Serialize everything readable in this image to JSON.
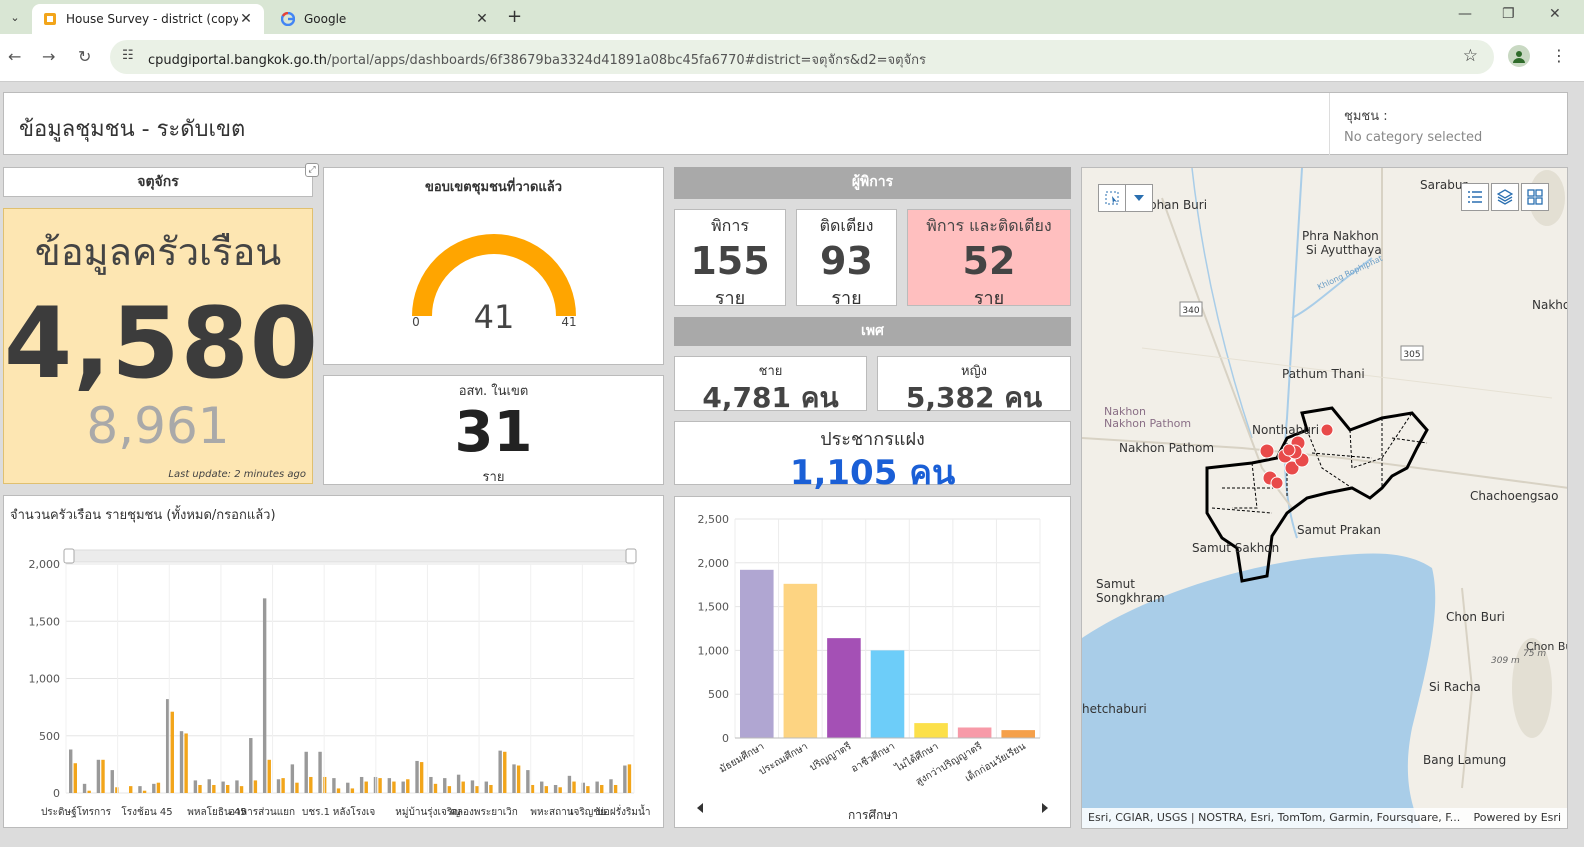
{
  "browser": {
    "tabs": [
      {
        "title": "House Survey - district (copy)",
        "active": true
      },
      {
        "title": "Google",
        "active": false
      }
    ],
    "url_domain": "cpudgiportal.bangkok.go.th",
    "url_path": "/portal/apps/dashboards/6f38679ba3324d41891a08bc45fa6770#district=จตุจักร&d2=จตุจักร"
  },
  "header": {
    "title": "ข้อมูลชุมชน - ระดับเขต",
    "selector_label": "ชุมชน :",
    "selector_placeholder": "No category selected"
  },
  "district": "จตุจักร",
  "household": {
    "title": "ข้อมูลครัวเรือน",
    "value": "4,580",
    "sub_value": "8,961",
    "last_update": "Last update: 2 minutes ago"
  },
  "gauge": {
    "title": "ขอบเขตชุมชนที่วาดแล้ว",
    "value": 41,
    "min": 0,
    "max": 41,
    "value_label": "41",
    "min_label": "0",
    "max_label": "41",
    "color": "#ffa500"
  },
  "asst": {
    "caption": "อสท. ในเขต",
    "value": "31",
    "unit": "ราย"
  },
  "disabled": {
    "section": "ผู้พิการ",
    "cards": [
      {
        "label": "พิการ",
        "value": "155",
        "unit": "ราย"
      },
      {
        "label": "ติดเตียง",
        "value": "93",
        "unit": "ราย"
      },
      {
        "label": "พิการ และติดเตียง",
        "value": "52",
        "unit": "ราย"
      }
    ]
  },
  "gender": {
    "section": "เพศ",
    "male": {
      "label": "ชาย",
      "value": "4,781 คน"
    },
    "female": {
      "label": "หญิง",
      "value": "5,382 คน"
    }
  },
  "hidden_pop": {
    "label": "ประชากรแฝง",
    "value": "1,105 คน",
    "color": "#1a5fd6"
  },
  "bar_chart_title": "จำนวนครัวเรือน รายชุมชน (ทั้งหมด/กรอกแล้ว)",
  "edu_axis_label": "การศึกษา",
  "chart_data": [
    {
      "type": "bar",
      "title": "จำนวนครัวเรือน รายชุมชน (ทั้งหมด/กรอกแล้ว)",
      "ylim": [
        0,
        2000
      ],
      "yticks": [
        "0",
        "500",
        "1,000",
        "1,500",
        "2,000"
      ],
      "category_labels": [
        "ประดิษฐ์โทรการ",
        "โรงช้อน 45",
        "พหลโยธิน 45",
        "อาหารส่วนแยก",
        "บชร.1",
        "หลังโรงเจ",
        "หมู่บ้านรุ่งเจริญ",
        "คลองพระยาเวิก",
        "พหะสถาน",
        "เจริญชัย",
        "บ่อฝรั่งริมน้ำ"
      ],
      "series": [
        {
          "color": "#999999",
          "values": [
            380,
            80,
            290,
            200,
            0,
            60,
            80,
            820,
            540,
            110,
            120,
            100,
            110,
            480,
            1700,
            120,
            250,
            360,
            360,
            130,
            90,
            140,
            140,
            130,
            100,
            280,
            140,
            130,
            160,
            110,
            100,
            370,
            250,
            200,
            100,
            70,
            150,
            90,
            100,
            120,
            240
          ]
        },
        {
          "color": "#f2a51a",
          "values": [
            260,
            20,
            290,
            50,
            60,
            20,
            90,
            710,
            520,
            70,
            70,
            70,
            60,
            110,
            290,
            130,
            90,
            140,
            140,
            40,
            40,
            100,
            130,
            100,
            120,
            270,
            80,
            60,
            100,
            60,
            70,
            360,
            240,
            70,
            60,
            50,
            100,
            60,
            70,
            70,
            250
          ]
        }
      ]
    },
    {
      "type": "bar",
      "xlabel": "การศึกษา",
      "ylim": [
        0,
        2500
      ],
      "yticks": [
        "0",
        "500",
        "1,000",
        "1,500",
        "2,000",
        "2,500"
      ],
      "categories": [
        "มัธยมศึกษา",
        "ประถมศึกษา",
        "ปริญญาตรี",
        "อาชีวศึกษา",
        "ไม่ได้ศึกษา",
        "สูงกว่าปริญญาตรี",
        "เด็กก่อนวัยเรียน"
      ],
      "values": [
        1920,
        1760,
        1140,
        1000,
        170,
        120,
        90
      ],
      "colors": [
        "#b0a6d2",
        "#fdd482",
        "#a450b5",
        "#6dcdf9",
        "#fce04a",
        "#f79aa8",
        "#f5a04a"
      ]
    }
  ],
  "map": {
    "places": [
      "Sarabur",
      "hophan Buri",
      "Phra Nakhon Si Ayutthaya",
      "Nakho",
      "Pathum Thani",
      "Nakhon Pathom",
      "Nakhon Pathom",
      "Nonthaburi",
      "Samut Prakan",
      "Samut Sakhon",
      "Chachoengsao",
      "Samut Songkhram",
      "Chon Buri",
      "Chon Bur",
      "Si Racha",
      "hetchaburi",
      "Bang Lamung",
      "Khlong Rophiphat"
    ],
    "attribution": "Esri, CGIAR, USGS | NOSTRA, Esri, TomTom, Garmin, Foursquare, F...",
    "powered": "Powered by Esri",
    "road_labels": [
      "340",
      "305"
    ],
    "heights": [
      "309 m",
      "75 m"
    ]
  }
}
